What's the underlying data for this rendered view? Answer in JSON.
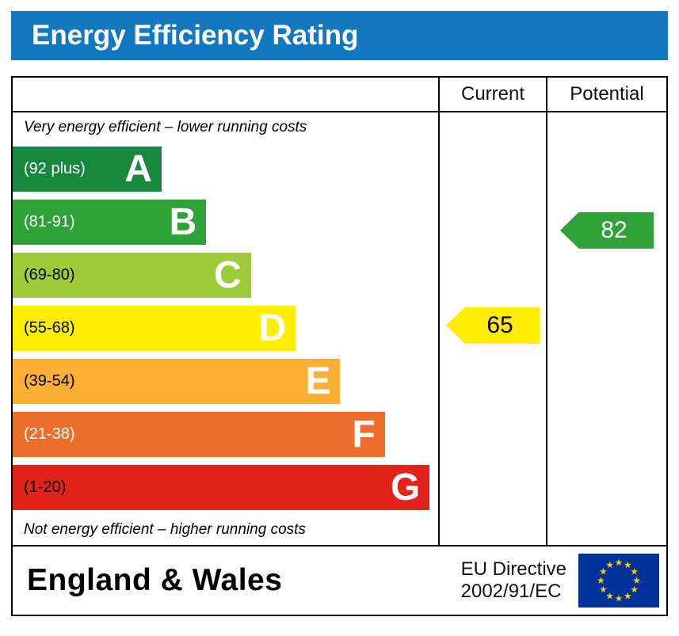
{
  "title": "Energy Efficiency Rating",
  "colors": {
    "header_bg": "#1478be",
    "table_border": "#000000"
  },
  "columns": {
    "current": "Current",
    "potential": "Potential"
  },
  "chart_data": {
    "type": "bar",
    "title": "Energy Efficiency Rating",
    "top_caption": "Very energy efficient – lower running costs",
    "bottom_caption": "Not energy efficient – higher running costs",
    "letter_color": "#ffffff",
    "bands": [
      {
        "letter": "A",
        "range": "(92 plus)",
        "min": 92,
        "max": 100,
        "color": "#17873e",
        "label_color": "#ffffff",
        "width_pct": 35
      },
      {
        "letter": "B",
        "range": "(81-91)",
        "min": 81,
        "max": 91,
        "color": "#2ea138",
        "label_color": "#ffffff",
        "width_pct": 45.5
      },
      {
        "letter": "C",
        "range": "(69-80)",
        "min": 69,
        "max": 80,
        "color": "#9ecb3a",
        "label_color": "#000000",
        "width_pct": 56
      },
      {
        "letter": "D",
        "range": "(55-68)",
        "min": 55,
        "max": 68,
        "color": "#ffed00",
        "label_color": "#000000",
        "width_pct": 66.5
      },
      {
        "letter": "E",
        "range": "(39-54)",
        "min": 39,
        "max": 54,
        "color": "#fbb034",
        "label_color": "#000000",
        "width_pct": 77
      },
      {
        "letter": "F",
        "range": "(21-38)",
        "min": 21,
        "max": 38,
        "color": "#eb6e2d",
        "label_color": "#ffffff",
        "width_pct": 87.5
      },
      {
        "letter": "G",
        "range": "(1-20)",
        "min": 1,
        "max": 20,
        "color": "#e2231a",
        "label_color": "#000000",
        "width_pct": 98
      }
    ],
    "current": {
      "value": 65,
      "band": "D",
      "color": "#ffed00",
      "text_color": "#000000"
    },
    "potential": {
      "value": 82,
      "band": "B",
      "color": "#2ea138",
      "text_color": "#ffffff"
    }
  },
  "footer": {
    "region": "England & Wales",
    "directive_line1": "EU Directive",
    "directive_line2": "2002/91/EC",
    "flag_colors": {
      "field": "#003399",
      "stars": "#ffcc00"
    }
  }
}
